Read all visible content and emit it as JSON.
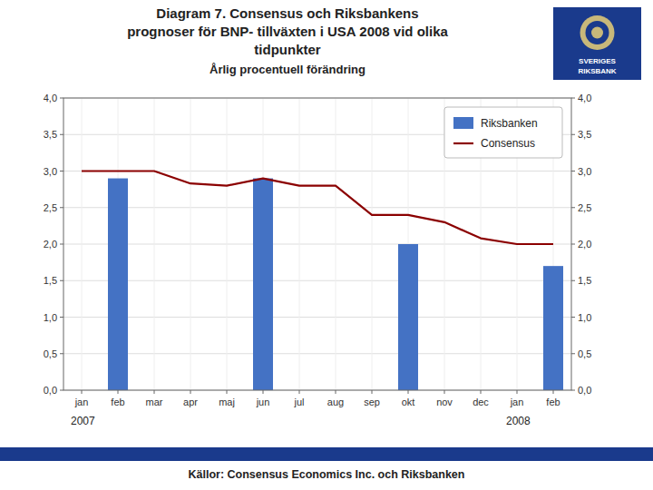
{
  "chart_data": {
    "type": "bar",
    "title": [
      "Diagram 7. Consensus och Riksbankens",
      "prognoser för BNP- tillväxten i USA 2008 vid olika",
      "tidpunkter"
    ],
    "subtitle": "Årlig procentuell förändring",
    "annotations": [
      "2007",
      "2008",
      "Källor: Consensus Economics Inc. och Riksbanken",
      "SVERIGES",
      "RIKSBANK"
    ],
    "categories": [
      "jan",
      "feb",
      "mar",
      "apr",
      "maj",
      "jun",
      "jul",
      "aug",
      "sep",
      "okt",
      "nov",
      "dec",
      "jan",
      "feb"
    ],
    "series": [
      {
        "name": "Riksbanken",
        "type": "bar",
        "color": "#4472C4",
        "values": [
          null,
          2.9,
          null,
          null,
          null,
          2.9,
          null,
          null,
          null,
          2.0,
          null,
          null,
          null,
          1.7
        ]
      },
      {
        "name": "Consensus",
        "type": "line",
        "color": "#8B0000",
        "values": [
          3.0,
          3.0,
          3.0,
          2.83,
          2.8,
          2.9,
          2.8,
          2.8,
          2.4,
          2.4,
          2.3,
          2.08,
          2.0,
          2.0
        ]
      }
    ],
    "ylim": [
      0.0,
      4.0
    ],
    "yticks": [
      {
        "value": 0.0,
        "label": "0,0"
      },
      {
        "value": 0.5,
        "label": "0,5"
      },
      {
        "value": 1.0,
        "label": "1,0"
      },
      {
        "value": 1.5,
        "label": "1,5"
      },
      {
        "value": 2.0,
        "label": "2,0"
      },
      {
        "value": 2.5,
        "label": "2,5"
      },
      {
        "value": 3.0,
        "label": "3,0"
      },
      {
        "value": 3.5,
        "label": "3,5"
      },
      {
        "value": 4.0,
        "label": "4,0"
      }
    ],
    "grid": true,
    "legend": "upper right"
  }
}
